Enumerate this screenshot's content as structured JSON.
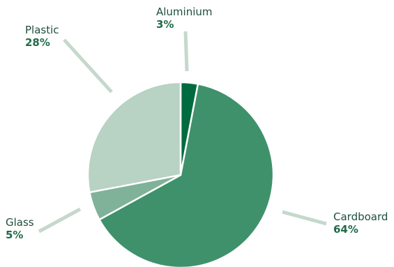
{
  "chart_data": {
    "type": "pie",
    "title": "",
    "slices": [
      {
        "label": "Aluminium",
        "value": 3,
        "display": "3%",
        "color": "#006b3f"
      },
      {
        "label": "Cardboard",
        "value": 64,
        "display": "64%",
        "color": "#3f916b"
      },
      {
        "label": "Glass",
        "value": 5,
        "display": "5%",
        "color": "#7fb299"
      },
      {
        "label": "Plastic",
        "value": 28,
        "display": "28%",
        "color": "#b8d2c4"
      }
    ],
    "start": "top",
    "direction": "clockwise",
    "leader_color": "#c5d8cc"
  }
}
